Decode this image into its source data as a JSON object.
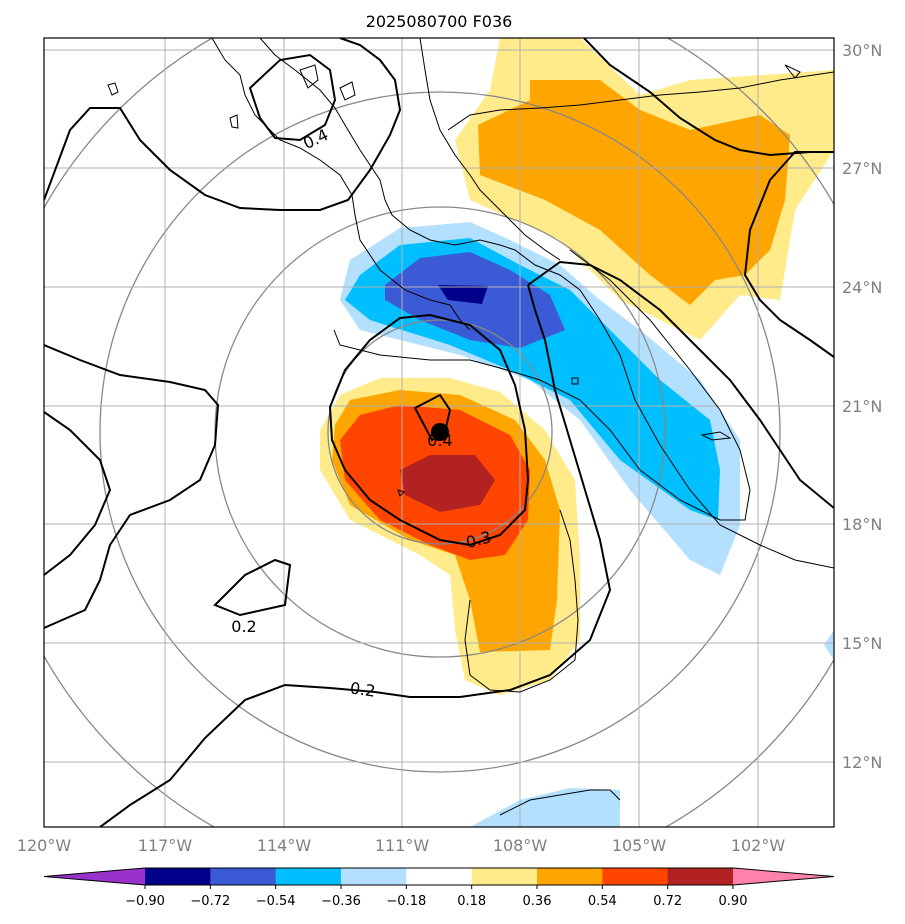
{
  "title": "2025080700 F036",
  "map": {
    "lon_labels": [
      "120°W",
      "117°W",
      "114°W",
      "111°W",
      "108°W",
      "105°W",
      "102°W"
    ],
    "lat_labels": [
      "30°N",
      "27°N",
      "24°N",
      "21°N",
      "18°N",
      "15°N",
      "12°N"
    ],
    "contour_labels": [
      "0.4",
      "0.4",
      "0.3",
      "0.2",
      "0.2"
    ],
    "center_marker": "storm-center"
  },
  "colorbar": {
    "tick_labels": [
      "−0.90",
      "−0.72",
      "−0.54",
      "−0.36",
      "−0.18",
      "0.18",
      "0.36",
      "0.54",
      "0.72",
      "0.90"
    ],
    "colors": [
      "#9932cc",
      "#00008b",
      "#3b5bd6",
      "#00bfff",
      "#b3e0ff",
      "#ffffff",
      "#ffeb8a",
      "#ffa500",
      "#ff4500",
      "#b22222",
      "#ff82ab"
    ]
  }
}
